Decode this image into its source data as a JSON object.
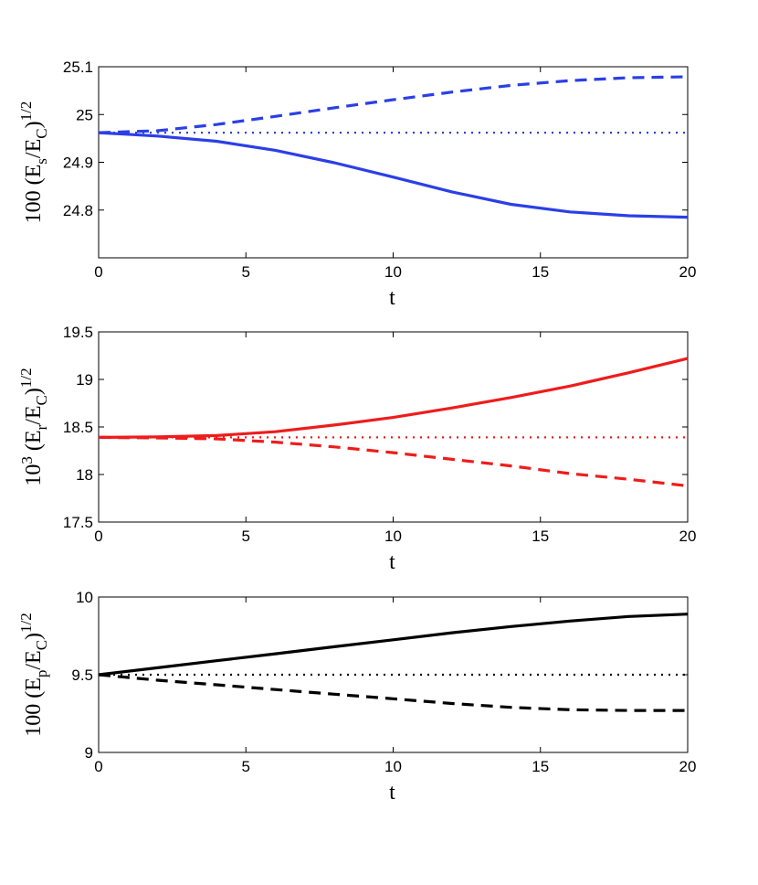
{
  "chart_data": [
    {
      "type": "line",
      "ylabel": {
        "prefix": "100 (E",
        "sub1": "s",
        "mid": "/E",
        "sub2": "C",
        "close": ")",
        "sup": "1/2"
      },
      "xlabel": "t",
      "xlim": [
        0,
        20
      ],
      "ylim": [
        24.7,
        25.1
      ],
      "xticks": [
        "0",
        "5",
        "10",
        "15",
        "20"
      ],
      "xtick_values": [
        0,
        5,
        10,
        15,
        20
      ],
      "yticks": [
        "24.8",
        "24.9",
        "25",
        "25.1"
      ],
      "ytick_values": [
        24.8,
        24.9,
        25.0,
        25.1
      ],
      "color": "#2b3fe6",
      "series": [
        {
          "name": "solid",
          "style": "solid",
          "x": [
            0,
            2,
            4,
            6,
            8,
            10,
            12,
            14,
            16,
            18,
            20
          ],
          "values": [
            24.962,
            24.955,
            24.944,
            24.925,
            24.899,
            24.869,
            24.838,
            24.812,
            24.796,
            24.788,
            24.785
          ]
        },
        {
          "name": "dashed",
          "style": "dashed",
          "x": [
            0,
            2,
            4,
            6,
            8,
            10,
            12,
            14,
            16,
            18,
            20
          ],
          "values": [
            24.962,
            24.966,
            24.979,
            24.996,
            25.014,
            25.031,
            25.047,
            25.061,
            25.071,
            25.077,
            25.079
          ]
        },
        {
          "name": "dotted",
          "style": "dotted",
          "x": [
            0,
            20
          ],
          "values": [
            24.962,
            24.962
          ]
        }
      ]
    },
    {
      "type": "line",
      "ylabel": {
        "prefix": "10",
        "presup": "3",
        "mid0": " (E",
        "sub1": "r",
        "mid": "/E",
        "sub2": "C",
        "close": ")",
        "sup": "1/2"
      },
      "xlabel": "t",
      "xlim": [
        0,
        20
      ],
      "ylim": [
        17.5,
        19.5
      ],
      "xticks": [
        "0",
        "5",
        "10",
        "15",
        "20"
      ],
      "xtick_values": [
        0,
        5,
        10,
        15,
        20
      ],
      "yticks": [
        "17.5",
        "18",
        "18.5",
        "19",
        "19.5"
      ],
      "ytick_values": [
        17.5,
        18.0,
        18.5,
        19.0,
        19.5
      ],
      "color": "#ee1c1c",
      "series": [
        {
          "name": "solid",
          "style": "solid",
          "x": [
            0,
            2,
            4,
            6,
            8,
            10,
            12,
            14,
            16,
            18,
            20
          ],
          "values": [
            18.39,
            18.395,
            18.41,
            18.45,
            18.52,
            18.6,
            18.7,
            18.81,
            18.93,
            19.07,
            19.22
          ]
        },
        {
          "name": "dashed",
          "style": "dashed",
          "x": [
            0,
            2,
            4,
            6,
            8,
            10,
            12,
            14,
            16,
            18,
            20
          ],
          "values": [
            18.39,
            18.385,
            18.375,
            18.34,
            18.29,
            18.23,
            18.16,
            18.09,
            18.01,
            17.95,
            17.88
          ]
        },
        {
          "name": "dotted",
          "style": "dotted",
          "x": [
            0,
            20
          ],
          "values": [
            18.39,
            18.39
          ]
        }
      ]
    },
    {
      "type": "line",
      "ylabel": {
        "prefix": "100 (E",
        "sub1": "p",
        "mid": "/E",
        "sub2": "C",
        "close": ")",
        "sup": "1/2"
      },
      "xlabel": "t",
      "xlim": [
        0,
        20
      ],
      "ylim": [
        9,
        10
      ],
      "xticks": [
        "0",
        "5",
        "10",
        "15",
        "20"
      ],
      "xtick_values": [
        0,
        5,
        10,
        15,
        20
      ],
      "yticks": [
        "9",
        "9.5",
        "10"
      ],
      "ytick_values": [
        9.0,
        9.5,
        10.0
      ],
      "color": "#000000",
      "series": [
        {
          "name": "solid",
          "style": "solid",
          "x": [
            0,
            2,
            4,
            6,
            8,
            10,
            12,
            14,
            16,
            18,
            20
          ],
          "values": [
            9.5,
            9.545,
            9.59,
            9.635,
            9.68,
            9.725,
            9.77,
            9.81,
            9.845,
            9.875,
            9.89
          ]
        },
        {
          "name": "dashed",
          "style": "dashed",
          "x": [
            0,
            2,
            4,
            6,
            8,
            10,
            12,
            14,
            16,
            18,
            20
          ],
          "values": [
            9.5,
            9.465,
            9.435,
            9.405,
            9.375,
            9.345,
            9.315,
            9.29,
            9.275,
            9.27,
            9.27
          ]
        },
        {
          "name": "dotted",
          "style": "dotted",
          "x": [
            0,
            20
          ],
          "values": [
            9.5,
            9.5
          ]
        }
      ]
    }
  ]
}
